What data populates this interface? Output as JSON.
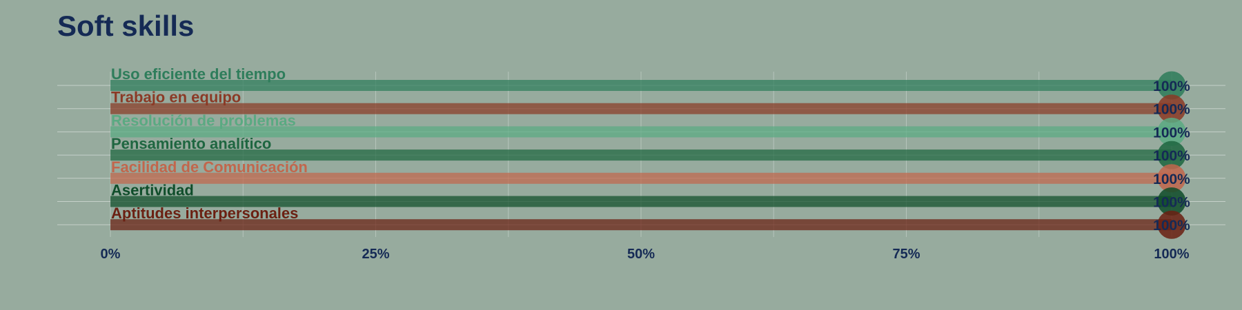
{
  "background_color": "#97ab9e",
  "title": "Soft skills",
  "chart_data": {
    "type": "bar",
    "orientation": "horizontal",
    "title": "Soft skills",
    "xlabel": "",
    "ylabel": "",
    "xlim": [
      0,
      100
    ],
    "grid": true,
    "legend": "none",
    "x_ticks": [
      "0%",
      "25%",
      "50%",
      "75%",
      "100%"
    ],
    "categories": [
      "Uso eficiente del tiempo",
      "Trabajo en equipo",
      "Resolución de problemas",
      "Pensamiento analítico",
      "Facilidad de Comunicación",
      "Asertividad",
      "Aptitudes interpersonales"
    ],
    "values": [
      100,
      100,
      100,
      100,
      100,
      100,
      100
    ],
    "value_labels": [
      "100%",
      "100%",
      "100%",
      "100%",
      "100%",
      "100%",
      "100%"
    ],
    "colors": [
      "#2e7d5b",
      "#8b3a26",
      "#5aaa82",
      "#1e6640",
      "#c2664c",
      "#0f4d2a",
      "#6b2012"
    ]
  }
}
